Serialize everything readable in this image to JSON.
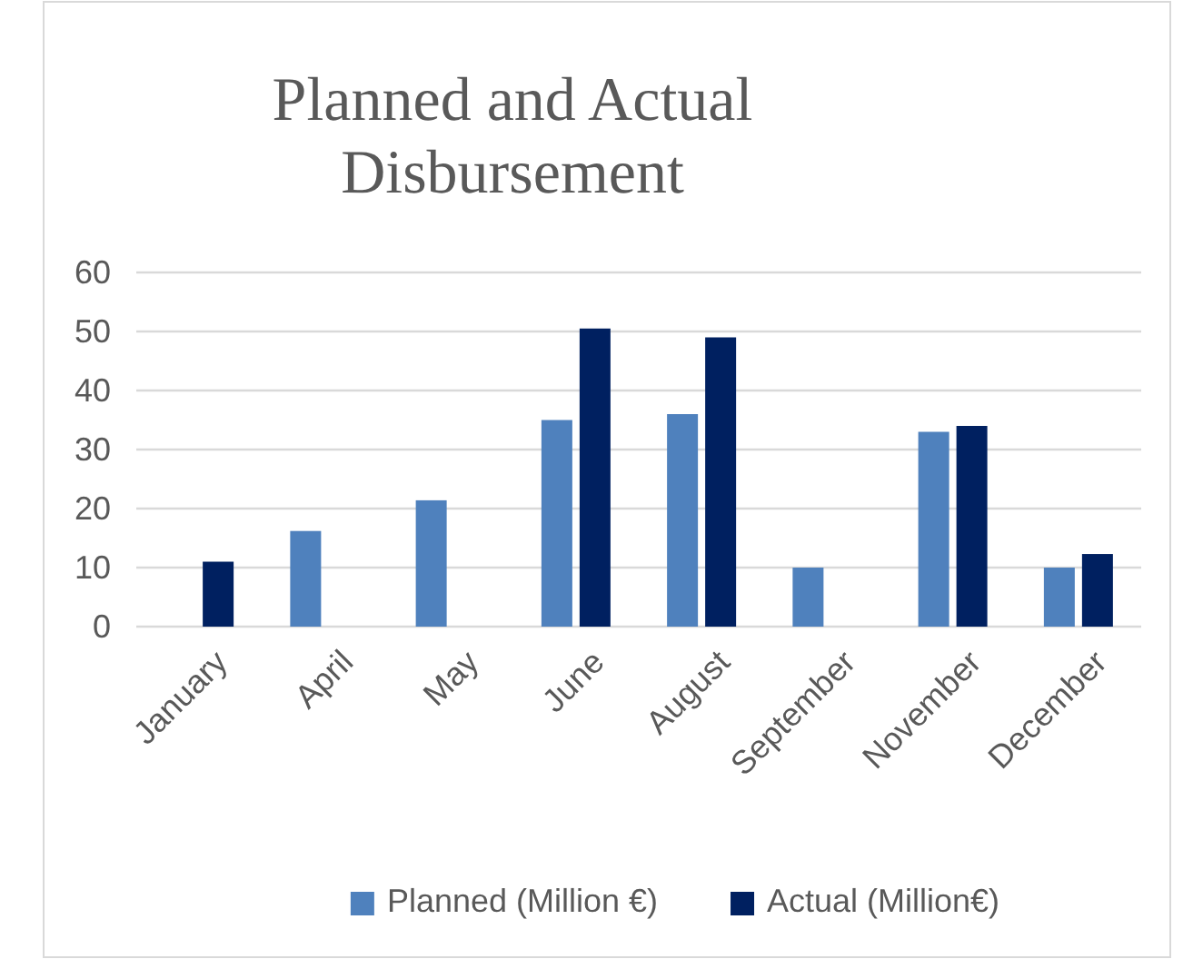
{
  "chart_data": {
    "type": "bar",
    "title": "Planned and Actual Disbursement",
    "categories": [
      "January",
      "April",
      "May",
      "June",
      "August",
      "September",
      "November",
      "December"
    ],
    "series": [
      {
        "name": "Planned (Million €)",
        "color": "#4f81bd",
        "values": [
          null,
          16.2,
          21.4,
          35,
          36,
          10,
          33,
          10
        ]
      },
      {
        "name": "Actual (Million€)",
        "color": "#002060",
        "values": [
          11,
          null,
          null,
          50.5,
          49,
          null,
          34,
          12.3
        ]
      }
    ],
    "ylim": [
      0,
      60
    ],
    "yticks": [
      0,
      10,
      20,
      30,
      40,
      50,
      60
    ],
    "grid": "y",
    "legend": "bottom"
  }
}
